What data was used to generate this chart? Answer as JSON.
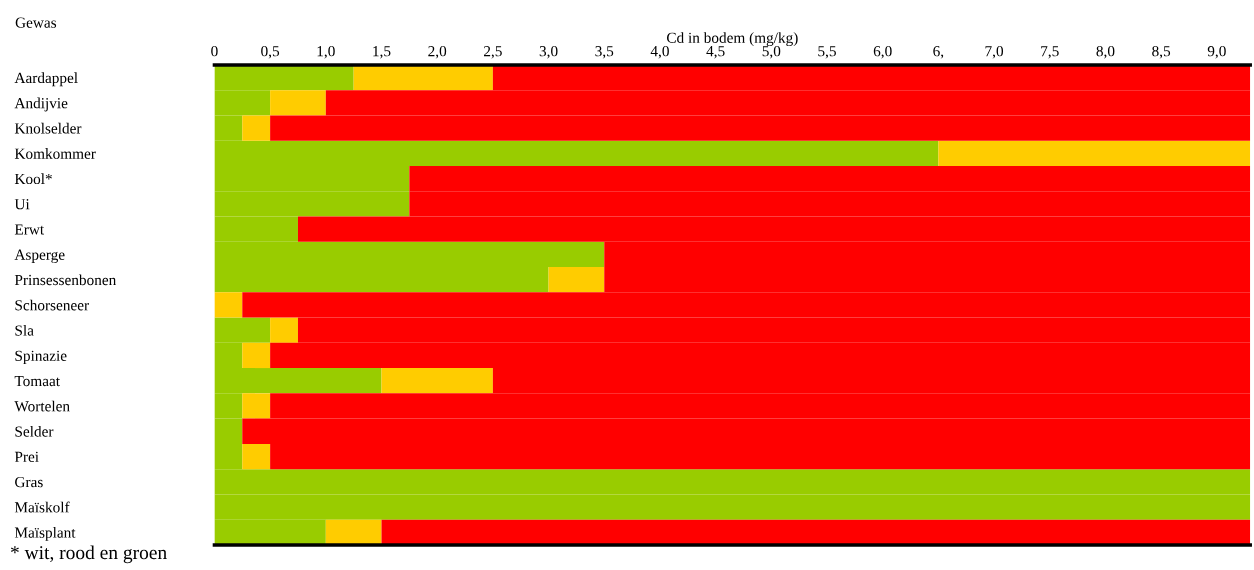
{
  "chart_data": {
    "type": "bar",
    "orientation": "horizontal",
    "stacked": true,
    "xlabel": "Cd in bodem (mg/kg)",
    "ylabel": "Gewas",
    "categories": [
      "Aardappel",
      "Andijvie",
      "Knolselder",
      "Komkommer",
      "Kool*",
      "Ui",
      "Erwt",
      "Asperge",
      "Prinsessenbonen",
      "Schorseneer",
      "Sla",
      "Spinazie",
      "Tomaat",
      "Wortelen",
      "Selder",
      "Prei",
      "Gras",
      "Maïskolf",
      "Maïsplant"
    ],
    "series": [
      {
        "color": "#99cc00",
        "values": [
          1.25,
          0.5,
          0.25,
          6.5,
          1.75,
          1.75,
          0.75,
          3.5,
          3.0,
          0,
          0.5,
          0.25,
          1.5,
          0.25,
          0.25,
          0.25,
          9.3,
          9.3,
          1.0
        ]
      },
      {
        "color": "#ffcc00",
        "values": [
          1.25,
          0.5,
          0.25,
          2.8,
          0,
          0,
          0,
          0,
          0.5,
          0.25,
          0.25,
          0.25,
          1.0,
          0.25,
          0,
          0.25,
          0,
          0,
          0.5
        ]
      },
      {
        "color": "#ff0000",
        "values": [
          6.8,
          8.3,
          8.8,
          0,
          7.55,
          7.55,
          8.55,
          5.8,
          5.8,
          9.05,
          8.55,
          8.8,
          6.8,
          8.8,
          9.05,
          8.8,
          0,
          0,
          7.8
        ]
      }
    ],
    "xlim": [
      0,
      9.3
    ],
    "xticks": [
      0,
      {
        "value": 0.5,
        "label": "0,5"
      },
      {
        "value": 1.0,
        "label": "1,0"
      },
      {
        "value": 1.5,
        "label": "1,5"
      },
      {
        "value": 2.0,
        "label": "2,0"
      },
      {
        "value": 2.5,
        "label": "2,5"
      },
      {
        "value": 3.0,
        "label": "3,0"
      },
      {
        "value": 3.5,
        "label": "3,5"
      },
      {
        "value": 4.0,
        "label": "4,0"
      },
      {
        "value": 4.5,
        "label": "4,5"
      },
      {
        "value": 5.0,
        "label": "5,0"
      },
      {
        "value": 5.5,
        "label": "5,5"
      },
      {
        "value": 6.0,
        "label": "6,0"
      },
      {
        "value": 6.5,
        "label": "6,"
      },
      {
        "value": 7.0,
        "label": "7,0"
      },
      {
        "value": 7.5,
        "label": "7,5"
      },
      {
        "value": 8.0,
        "label": "8,0"
      },
      {
        "value": 8.5,
        "label": "8,5"
      },
      {
        "value": 9.0,
        "label": "9,0"
      }
    ],
    "annotations": [
      "* wit, rood en groen"
    ]
  }
}
